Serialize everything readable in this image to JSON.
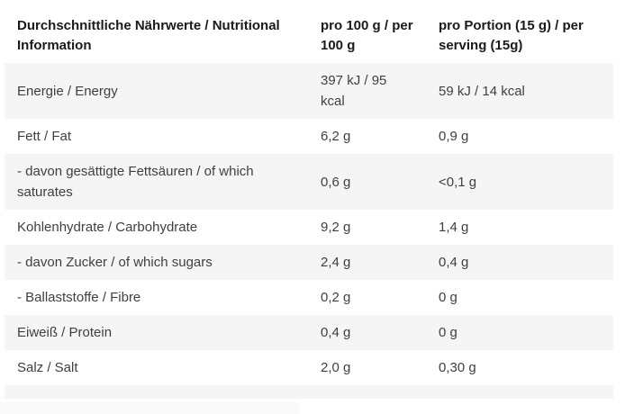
{
  "table": {
    "columns": [
      {
        "label": "Durchschnittliche Nährwerte / Nutritional Information"
      },
      {
        "label": "pro 100 g / per 100 g"
      },
      {
        "label": "pro Portion (15 g) / per serving (15g)"
      }
    ],
    "rows": [
      {
        "label": "Energie / Energy",
        "per100": "397 kJ / 95 kcal",
        "perServing": "59 kJ / 14 kcal"
      },
      {
        "label": "Fett / Fat",
        "per100": "6,2 g",
        "perServing": "0,9 g"
      },
      {
        "label": "- davon gesättigte Fettsäuren / of which saturates",
        "per100": "0,6 g",
        "perServing": "<0,1 g"
      },
      {
        "label": "Kohlenhydrate / Carbohydrate",
        "per100": "9,2 g",
        "perServing": "1,4 g"
      },
      {
        "label": "- davon Zucker / of which sugars",
        "per100": "2,4 g",
        "perServing": "0,4 g"
      },
      {
        "label": "- Ballaststoffe / Fibre",
        "per100": "0,2 g",
        "perServing": "0 g"
      },
      {
        "label": "Eiweiß / Protein",
        "per100": "0,4 g",
        "perServing": "0 g"
      },
      {
        "label": "Salz / Salt",
        "per100": "2,0 g",
        "perServing": "0,30 g"
      }
    ],
    "colors": {
      "stripe": "#f5f5f5",
      "header_text": "#1a1a1a",
      "body_text": "#3f3f3f",
      "cutoff_faint": "#fafafa"
    }
  }
}
